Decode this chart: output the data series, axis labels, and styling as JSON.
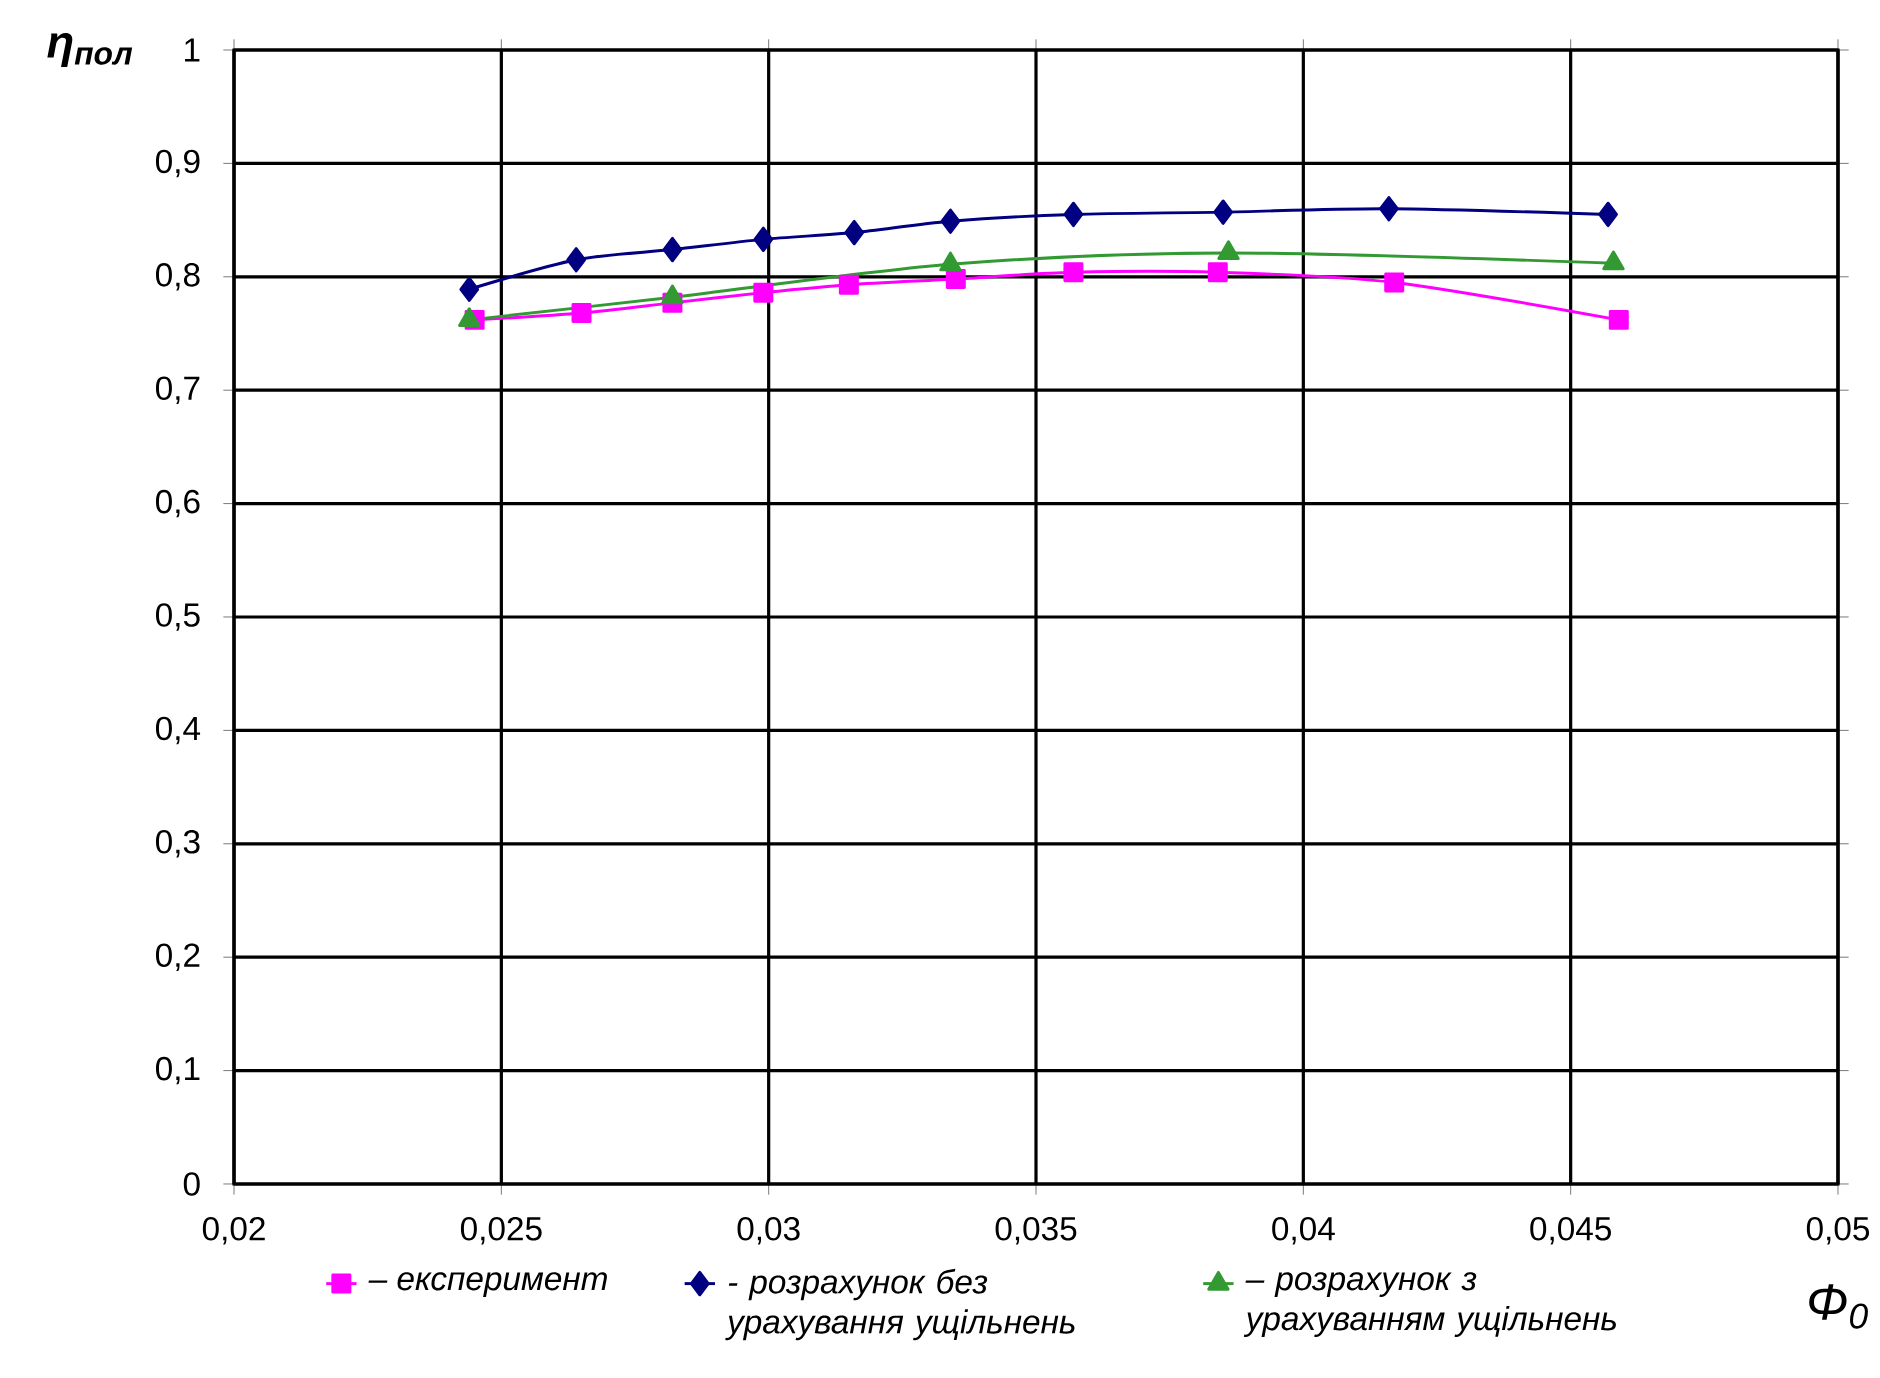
{
  "chart_data": {
    "type": "line",
    "xlabel": "Φ$_{0}$",
    "ylabel": "η$_{пол}$",
    "xlim": [
      0.02,
      0.05
    ],
    "ylim": [
      0,
      1
    ],
    "xticks": [
      {
        "value": 0.02,
        "label": "0,02"
      },
      {
        "value": 0.025,
        "label": "0,025"
      },
      {
        "value": 0.03,
        "label": "0,03"
      },
      {
        "value": 0.035,
        "label": "0,035"
      },
      {
        "value": 0.04,
        "label": "0,04"
      },
      {
        "value": 0.045,
        "label": "0,045"
      },
      {
        "value": 0.05,
        "label": "0,05"
      }
    ],
    "yticks": [
      0,
      {
        "value": 0.1,
        "label": "0,1"
      },
      {
        "value": 0.2,
        "label": "0,2"
      },
      {
        "value": 0.3,
        "label": "0,3"
      },
      {
        "value": 0.4,
        "label": "0,4"
      },
      {
        "value": 0.5,
        "label": "0,5"
      },
      {
        "value": 0.6,
        "label": "0,6"
      },
      {
        "value": 0.7,
        "label": "0,7"
      },
      {
        "value": 0.8,
        "label": "0,8"
      },
      {
        "value": 0.9,
        "label": "0,9"
      },
      1
    ],
    "grid": true,
    "legend": "bottom",
    "line_style": "solid",
    "series": [
      {
        "name": "– експеримент",
        "color": "#ff00ff",
        "marker": "square",
        "x": [
          0.0245,
          0.0265,
          0.0282,
          0.0299,
          0.0315,
          0.0335,
          0.0357,
          0.0384,
          0.0417,
          0.0459
        ],
        "values": [
          0.762,
          0.768,
          0.777,
          0.786,
          0.793,
          0.798,
          0.804,
          0.804,
          0.795,
          0.762
        ]
      },
      {
        "name": "- розрахунок без урахування ущільнень",
        "color": "#000080",
        "marker": "diamond",
        "x": [
          0.0244,
          0.0264,
          0.0282,
          0.0299,
          0.0316,
          0.0334,
          0.0357,
          0.0385,
          0.0416,
          0.0457
        ],
        "values": [
          0.789,
          0.815,
          0.824,
          0.833,
          0.839,
          0.849,
          0.855,
          0.857,
          0.86,
          0.855
        ]
      },
      {
        "name": "– розрахунок з урахуванням ущільнень",
        "color": "#339933",
        "marker": "triangle",
        "x": [
          0.0244,
          0.0282,
          0.0334,
          0.0386,
          0.0458
        ],
        "values": [
          0.762,
          0.782,
          0.811,
          0.821,
          0.812
        ]
      }
    ]
  }
}
